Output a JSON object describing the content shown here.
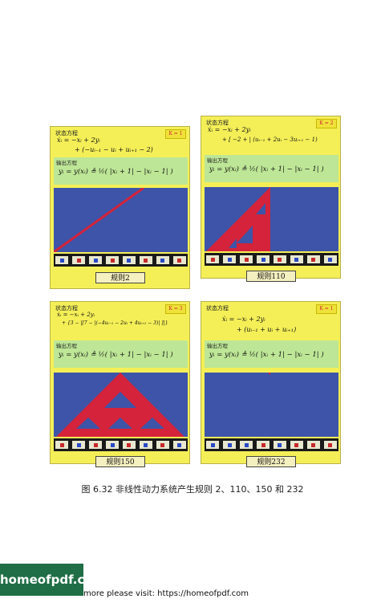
{
  "panels": [
    {
      "state_label": "状态方程",
      "k_badge": "K = 1",
      "state_eq_1": "ẋᵢ = −xᵢ + 2yᵢ",
      "state_eq_2": "+ (−uᵢ₋₁ − uᵢ + uᵢ₊₁ − 2)",
      "output_label": "输出方程",
      "output_eq": "yᵢ = y(xᵢ) ≜ ½( |xᵢ + 1| − |xᵢ − 1| )",
      "rule_label": "规则2"
    },
    {
      "state_label": "状态方程",
      "k_badge": "K = 2",
      "state_eq_1": "ẋᵢ = −xᵢ + 2yᵢ",
      "state_eq_2": "+ [ −2 + | (uᵢ₋₁ + 2uᵢ − 3uᵢ₊₁ − 1)",
      "output_label": "输出方程",
      "output_eq": "yᵢ = y(xᵢ) ≜ ½( |xᵢ + 1| − |xᵢ − 1| )",
      "rule_label": "规则110"
    },
    {
      "state_label": "状态方程",
      "k_badge": "K = 3",
      "state_eq_1": "ẋᵢ = −xᵢ + 2yᵢ",
      "state_eq_2": "+ {3 − |[7 − |(−4uᵢ₋₁ − 2uᵢ + 4uᵢ₊₁ − 3)| ]|}",
      "output_label": "输出方程",
      "output_eq": "yᵢ = y(xᵢ) ≜ ½( |xᵢ + 1| − |xᵢ − 1| )",
      "rule_label": "规则150"
    },
    {
      "state_label": "状态方程",
      "k_badge": "K = 1",
      "state_eq_1": "ẋᵢ = −xᵢ + 2yᵢ",
      "state_eq_2": "+ (uᵢ₋₁ + uᵢ + uᵢ₊₁)",
      "output_label": "输出方程",
      "output_eq": "yᵢ = y(xᵢ) ≜ ½( |xᵢ + 1| − |xᵢ − 1| )",
      "rule_label": "规则232"
    }
  ],
  "caption": "图 6.32   非线性动力系统产生规则 2、110、150 和 232",
  "footer": {
    "logo": "homeofpdf.com",
    "text": "more please visit: https://homeofpdf.com"
  },
  "colors": {
    "panel_bg": "#f4ef57",
    "output_bg": "#bde696",
    "sim_bg": "#3d54a8",
    "pattern": "#d4233a"
  }
}
